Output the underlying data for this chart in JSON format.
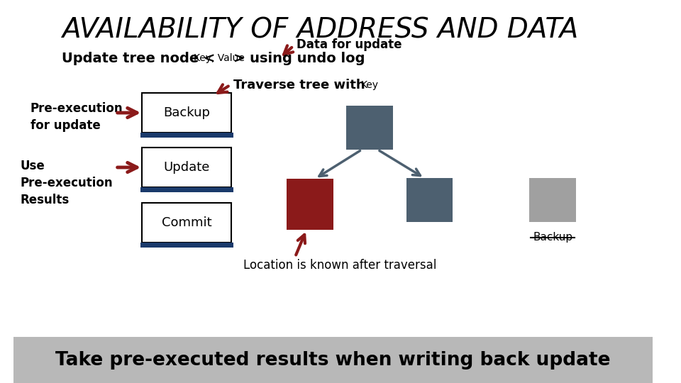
{
  "title": "AVAILABILITY OF ADDRESS AND DATA",
  "data_for_update": "Data for update",
  "update_tree_1": "Update tree node <",
  "update_tree_2": "Key, Value",
  "update_tree_3": "> using undo log",
  "traverse_text": "Traverse tree with ",
  "traverse_key": "Key",
  "pre_exec_label": "Pre-execution\nfor update",
  "use_label": "Use\nPre-execution\nResults",
  "backup_label": "Backup",
  "update_label": "Update",
  "commit_label": "Commit",
  "location_text": "Location is known after traversal",
  "backup_strikethrough": "Backup",
  "bottom_text": "Take pre-executed results when writing back update",
  "bg_color": "#ffffff",
  "bottom_bar_color": "#b8b8b8",
  "node_root_color": "#4d6070",
  "node_left_color": "#8b1a1a",
  "node_right_color": "#4d6070",
  "node_gray_color": "#a0a0a0",
  "bar_color": "#1a3a6b",
  "arrow_color": "#8b1a1a",
  "tree_arrow_color": "#4d6070"
}
